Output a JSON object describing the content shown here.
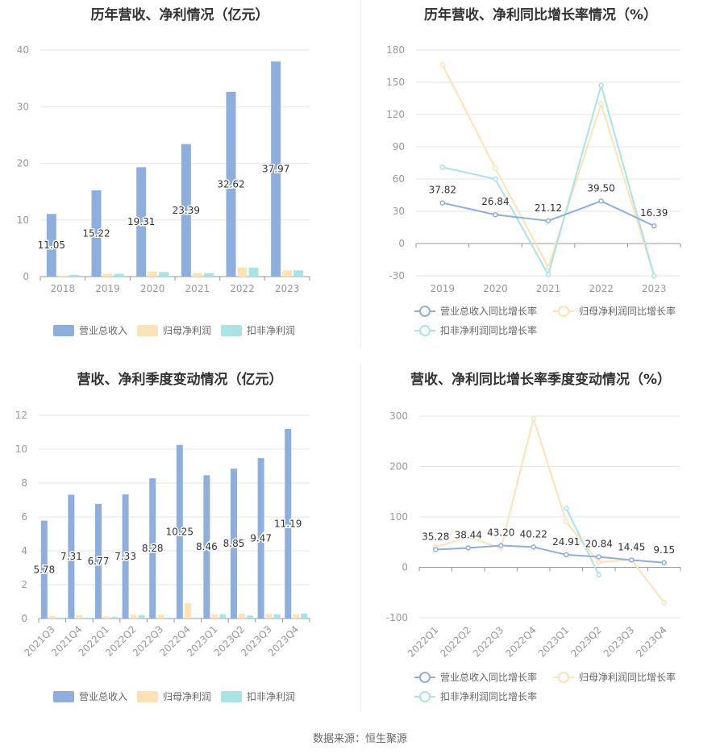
{
  "source_text": "数据来源：恒生聚源",
  "chart_data": [
    {
      "type": "bar",
      "title": "历年营收、净利情况（亿元）",
      "categories": [
        "2018",
        "2019",
        "2020",
        "2021",
        "2022",
        "2023"
      ],
      "ylim": [
        0,
        40
      ],
      "yticks": [
        0,
        10,
        20,
        30,
        40
      ],
      "series": [
        {
          "name": "营业总收入",
          "values": [
            11.05,
            15.22,
            19.31,
            23.39,
            32.62,
            37.97
          ],
          "color": "#8eaedd",
          "labels": [
            "11.05",
            "15.22",
            "19.31",
            "23.39",
            "32.62",
            "37.97"
          ]
        },
        {
          "name": "归母净利润",
          "values": [
            0.2,
            0.5,
            0.9,
            0.6,
            1.6,
            1.1
          ],
          "color": "#fde2b5"
        },
        {
          "name": "扣非净利润",
          "values": [
            0.3,
            0.5,
            0.8,
            0.6,
            1.6,
            1.1
          ],
          "color": "#a9e3e5"
        }
      ],
      "legend_position": "bottom"
    },
    {
      "type": "line",
      "title": "历年营收、净利同比增长率情况（%）",
      "categories": [
        "2019",
        "2020",
        "2021",
        "2022",
        "2023"
      ],
      "ylim": [
        -30,
        180
      ],
      "yticks": [
        -30,
        0,
        30,
        60,
        90,
        120,
        150,
        180
      ],
      "series": [
        {
          "name": "营业总收入同比增长率",
          "values": [
            37.82,
            26.84,
            21.12,
            39.5,
            16.39
          ],
          "color": "#8eaedd",
          "labels": [
            "37.82",
            "26.84",
            "21.12",
            "39.50",
            "16.39"
          ]
        },
        {
          "name": "归母净利润同比增长率",
          "values": [
            166,
            70,
            -22,
            130,
            -30
          ],
          "color": "#fde2b5"
        },
        {
          "name": "扣非净利润同比增长率",
          "values": [
            71,
            60,
            -29,
            147,
            -30
          ],
          "color": "#a9e3e5"
        }
      ],
      "legend_position": "bottom"
    },
    {
      "type": "bar",
      "title": "营收、净利季度变动情况（亿元）",
      "categories": [
        "2021Q3",
        "2021Q4",
        "2022Q1",
        "2022Q2",
        "2022Q3",
        "2022Q4",
        "2023Q1",
        "2023Q2",
        "2023Q3",
        "2023Q4"
      ],
      "ylim": [
        0,
        12
      ],
      "yticks": [
        0,
        2,
        4,
        6,
        8,
        10,
        12
      ],
      "series": [
        {
          "name": "营业总收入",
          "values": [
            5.78,
            7.31,
            6.77,
            7.33,
            8.28,
            10.25,
            8.46,
            8.85,
            9.47,
            11.19
          ],
          "color": "#8eaedd",
          "labels": [
            "5.78",
            "7.31",
            "6.77",
            "7.33",
            "8.28",
            "10.25",
            "8.46",
            "8.85",
            "9.47",
            "11.19"
          ]
        },
        {
          "name": "归母净利润",
          "values": [
            0.15,
            0.2,
            0.12,
            0.22,
            0.22,
            0.9,
            0.25,
            0.28,
            0.27,
            0.25
          ],
          "color": "#fde2b5"
        },
        {
          "name": "扣非净利润",
          "values": [
            0.05,
            0.05,
            0.1,
            0.2,
            0.05,
            0.05,
            0.25,
            0.18,
            0.25,
            0.3
          ],
          "color": "#a9e3e5"
        }
      ],
      "legend_position": "bottom"
    },
    {
      "type": "line",
      "title": "营收、净利同比增长率季度变动情况（%）",
      "categories": [
        "2022Q1",
        "2022Q2",
        "2022Q3",
        "2022Q4",
        "2023Q1",
        "2023Q2",
        "2023Q3",
        "2023Q4"
      ],
      "ylim": [
        -100,
        300
      ],
      "yticks": [
        -100,
        0,
        100,
        200,
        300
      ],
      "series": [
        {
          "name": "营业总收入同比增长率",
          "values": [
            35.28,
            38.44,
            43.2,
            40.22,
            24.91,
            20.84,
            14.45,
            9.15
          ],
          "color": "#8eaedd",
          "labels": [
            "35.28",
            "38.44",
            "43.20",
            "40.22",
            "24.91",
            "20.84",
            "14.45",
            "9.15"
          ]
        },
        {
          "name": "归母净利润同比增长率",
          "values": [
            40,
            60,
            38,
            295,
            90,
            10,
            15,
            -70
          ],
          "color": "#fde2b5"
        },
        {
          "name": "扣非净利润同比增长率",
          "values": [
            null,
            null,
            null,
            null,
            117,
            -15,
            null,
            null
          ],
          "color": "#a9e3e5"
        }
      ],
      "legend_position": "bottom"
    }
  ]
}
